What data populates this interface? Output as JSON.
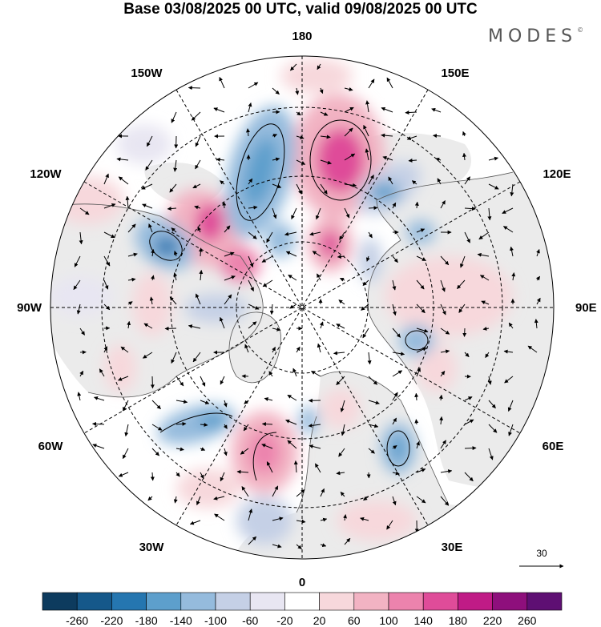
{
  "title": "Base 03/08/2025 00 UTC, valid 09/08/2025 00 UTC",
  "brand": {
    "name": "MODES",
    "mark": "©"
  },
  "map": {
    "projection": "north polar stereographic",
    "longitude_labels": {
      "top": "180",
      "bottom": "0",
      "left": "90W",
      "right": "90E",
      "upper_left_1": "150W",
      "upper_left_2": "120W",
      "upper_right_1": "150E",
      "upper_right_2": "120E",
      "lower_left_1": "60W",
      "lower_left_2": "30W",
      "lower_right_1": "60E",
      "lower_right_2": "30E"
    },
    "colors": {
      "land": "#ebebeb",
      "ocean": "#ffffff",
      "coast": "#555555",
      "grid": "#000000"
    }
  },
  "vector_key": {
    "label": "30"
  },
  "colorbar": {
    "ticks": [
      "-260",
      "-220",
      "-180",
      "-140",
      "-100",
      "-60",
      "-20",
      "20",
      "60",
      "100",
      "140",
      "180",
      "220",
      "260"
    ],
    "colors": [
      "#0d3b5e",
      "#15588a",
      "#2576b0",
      "#5d9fcc",
      "#95bbdd",
      "#c5d0e6",
      "#e8e6f2",
      "#ffffff",
      "#f7d8dc",
      "#f2b3c3",
      "#ec83ad",
      "#df4c99",
      "#c01b86",
      "#8e0f7c",
      "#5e0f73"
    ]
  }
}
